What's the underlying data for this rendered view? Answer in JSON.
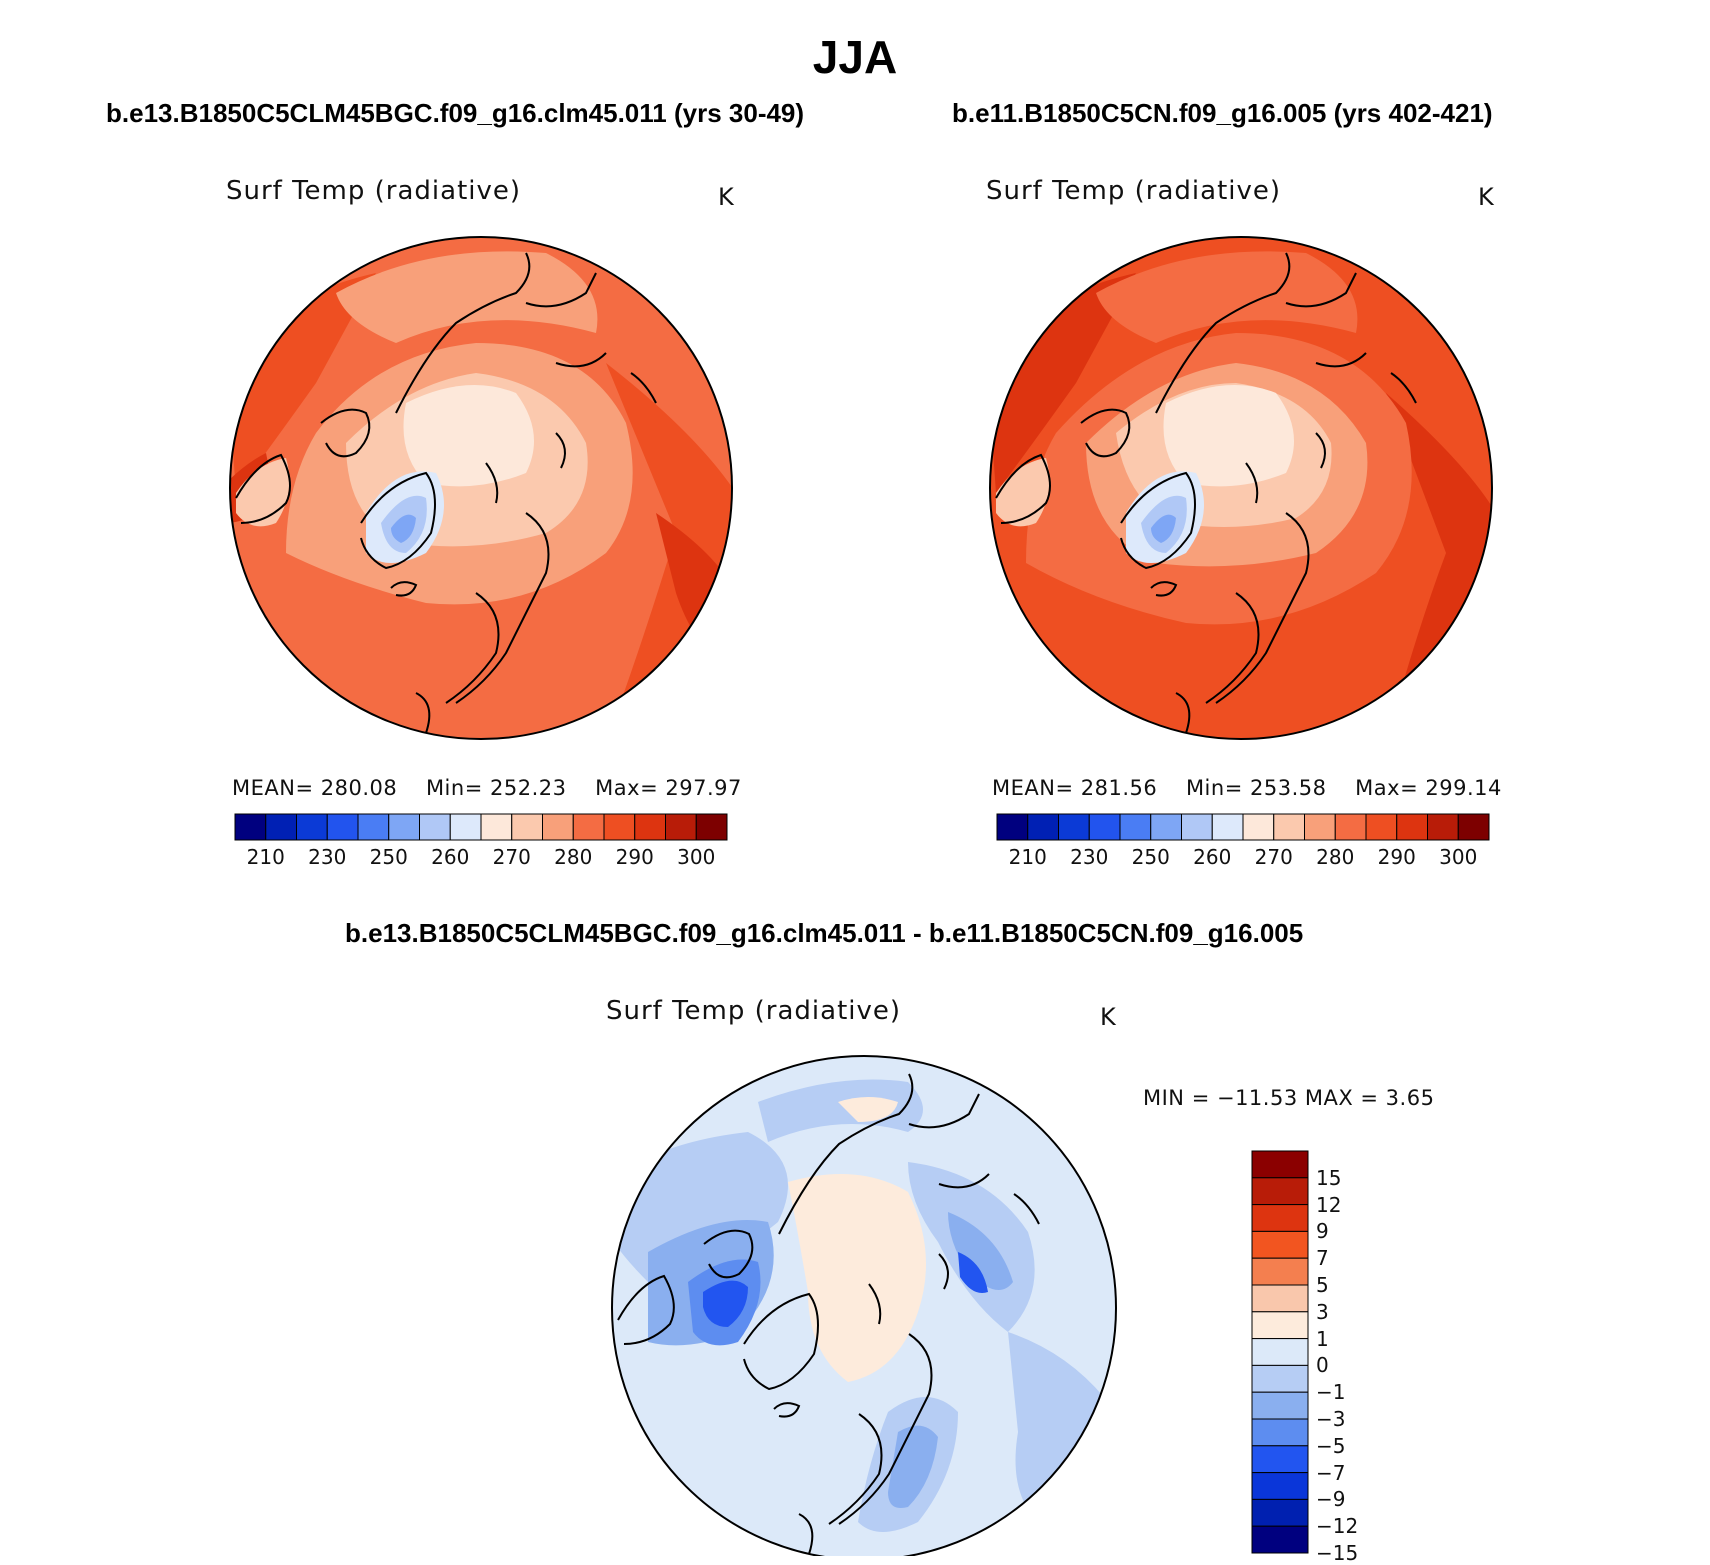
{
  "title": "JJA",
  "panels": [
    {
      "case_title": "b.e13.B1850C5CLM45BGC.f09_g16.clm45.011 (yrs 30-49)",
      "variable": "Surf Temp (radiative)",
      "units": "K",
      "stats": {
        "mean_label": "MEAN=",
        "mean": "280.08",
        "min_label": "Min=",
        "min": "252.23",
        "max_label": "Max=",
        "max": "297.97"
      },
      "colorbar_labels": [
        "210",
        "230",
        "250",
        "260",
        "270",
        "280",
        "290",
        "300"
      ]
    },
    {
      "case_title": "b.e11.B1850C5CN.f09_g16.005 (yrs 402-421)",
      "variable": "Surf Temp (radiative)",
      "units": "K",
      "stats": {
        "mean_label": "MEAN=",
        "mean": "281.56",
        "min_label": "Min=",
        "min": "253.58",
        "max_label": "Max=",
        "max": "299.14"
      },
      "colorbar_labels": [
        "210",
        "230",
        "250",
        "260",
        "270",
        "280",
        "290",
        "300"
      ]
    }
  ],
  "difference": {
    "title": "b.e13.B1850C5CLM45BGC.f09_g16.clm45.011 - b.e11.B1850C5CN.f09_g16.005",
    "variable": "Surf Temp (radiative)",
    "units": "K",
    "minmax": "MIN = −11.53 MAX =    3.65",
    "colorbar_labels": [
      "15",
      "12",
      "9",
      "7",
      "5",
      "3",
      "1",
      "0",
      "−1",
      "−3",
      "−5",
      "−7",
      "−9",
      "−12",
      "−15"
    ]
  },
  "colors": {
    "abs_scale": [
      "#00007f",
      "#0020b4",
      "#0b3ad6",
      "#2254ee",
      "#4a7df4",
      "#7ea6f5",
      "#b0c8f6",
      "#dde9fb",
      "#fde8da",
      "#fbc9ae",
      "#f8a07a",
      "#f46c43",
      "#ee4f22",
      "#dd3410",
      "#b81c08",
      "#7d0000"
    ],
    "diff_scale": [
      "#8b0000",
      "#b81c08",
      "#dd3410",
      "#f25520",
      "#f47f4f",
      "#f9c7ac",
      "#fdebdc",
      "#dce9f9",
      "#b6cdf4",
      "#8aafef",
      "#5d8df0",
      "#2255f0",
      "#0a36d9",
      "#0020b0",
      "#00007f"
    ],
    "coastline": "#000000"
  }
}
